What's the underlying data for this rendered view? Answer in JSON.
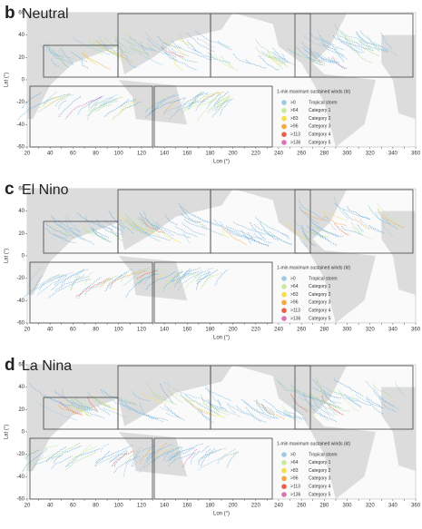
{
  "panels": [
    {
      "letter": "b",
      "name": "Neutral"
    },
    {
      "letter": "c",
      "name": "El Nino"
    },
    {
      "letter": "d",
      "name": "La Nina"
    }
  ],
  "x_label": "Lon (°)",
  "y_label": "Lat (°)",
  "xticks": [
    20,
    30,
    40,
    50,
    60,
    70,
    80,
    90,
    100,
    110,
    120,
    130,
    140,
    150,
    160,
    170,
    180,
    190,
    200,
    210,
    220,
    230,
    240,
    250,
    260,
    270,
    280,
    290,
    300,
    310,
    320,
    330,
    340,
    350,
    360
  ],
  "xtick_labels": [
    20,
    40,
    60,
    80,
    100,
    120,
    140,
    160,
    180,
    200,
    220,
    240,
    260,
    280,
    300,
    320,
    340,
    360
  ],
  "yticks": [
    60,
    40,
    20,
    0,
    -20,
    -40,
    -60
  ],
  "legend": {
    "title": "1-min maximum sustained winds (kt)",
    "entries": [
      {
        "threshold": ">0",
        "label": "Tropical storm",
        "color": "#9ecae1"
      },
      {
        "threshold": ">64",
        "label": "Category 1",
        "color": "#c7e9a0"
      },
      {
        "threshold": ">83",
        "label": "Category 2",
        "color": "#f2e04a"
      },
      {
        "threshold": ">96",
        "label": "Category 3",
        "color": "#f5a742"
      },
      {
        "threshold": ">113",
        "label": "Category 4",
        "color": "#e8604c"
      },
      {
        "threshold": ">136",
        "label": "Category 5",
        "color": "#d874b4"
      }
    ]
  }
}
